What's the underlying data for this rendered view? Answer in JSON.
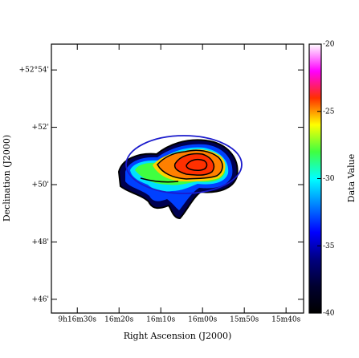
{
  "chart_data": {
    "type": "image",
    "x_label": "Right Ascension (J2000)",
    "y_label": "Declination (J2000)",
    "colorbar_label": "Data Value",
    "xlim": [
      996.2,
      935.8
    ],
    "xticks": [
      {
        "value": 990,
        "label": "9h16m30s"
      },
      {
        "value": 980,
        "label": "16m20s"
      },
      {
        "value": 970,
        "label": "16m10s"
      },
      {
        "value": 960,
        "label": "16m00s"
      },
      {
        "value": 950,
        "label": "15m50s"
      },
      {
        "value": 940,
        "label": "15m40s"
      }
    ],
    "ylim": [
      3165.52,
      3174.9
    ],
    "yticks": [
      {
        "value": 3174,
        "label": "+52°54'"
      },
      {
        "value": 3172,
        "label": "+52'"
      },
      {
        "value": 3170,
        "label": "+50'"
      },
      {
        "value": 3168,
        "label": "+48'"
      },
      {
        "value": 3166,
        "label": "+46'"
      }
    ],
    "clim": [
      -40,
      -20
    ],
    "cticks": [
      -20,
      -25,
      -30,
      -35,
      -40
    ],
    "colormap": [
      "#000000",
      "#000030",
      "#000080",
      "#0000ff",
      "#0080ff",
      "#00ffff",
      "#40ff40",
      "#ffff00",
      "#ff3000",
      "#ff00ff",
      "#ffffff"
    ]
  }
}
